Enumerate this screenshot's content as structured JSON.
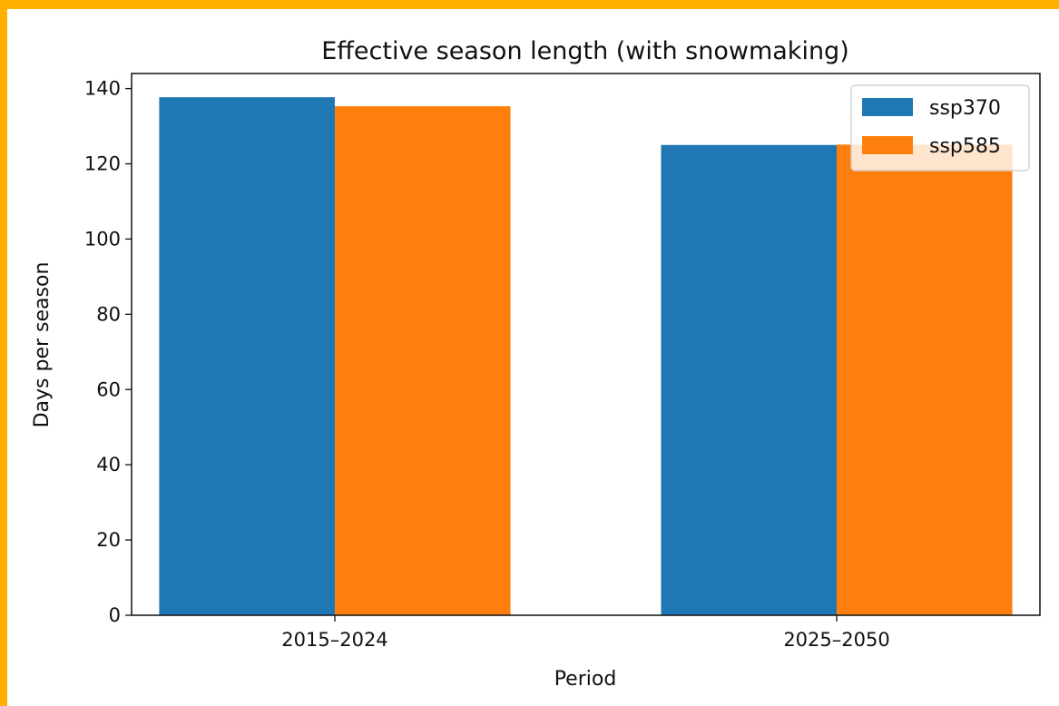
{
  "chart_data": {
    "type": "bar",
    "title": "Effective season length (with snowmaking)",
    "xlabel": "Period",
    "ylabel": "Days per season",
    "categories": [
      "2015–2024",
      "2025–2050"
    ],
    "series": [
      {
        "name": "ssp370",
        "color": "#1f77b4",
        "values": [
          137.7,
          125.0
        ]
      },
      {
        "name": "ssp585",
        "color": "#ff7f0e",
        "values": [
          135.3,
          125.1
        ]
      }
    ],
    "ylim": [
      0,
      144
    ],
    "yticks": [
      0,
      20,
      40,
      60,
      80,
      100,
      120,
      140
    ],
    "grid": false,
    "legend": "top-right"
  }
}
